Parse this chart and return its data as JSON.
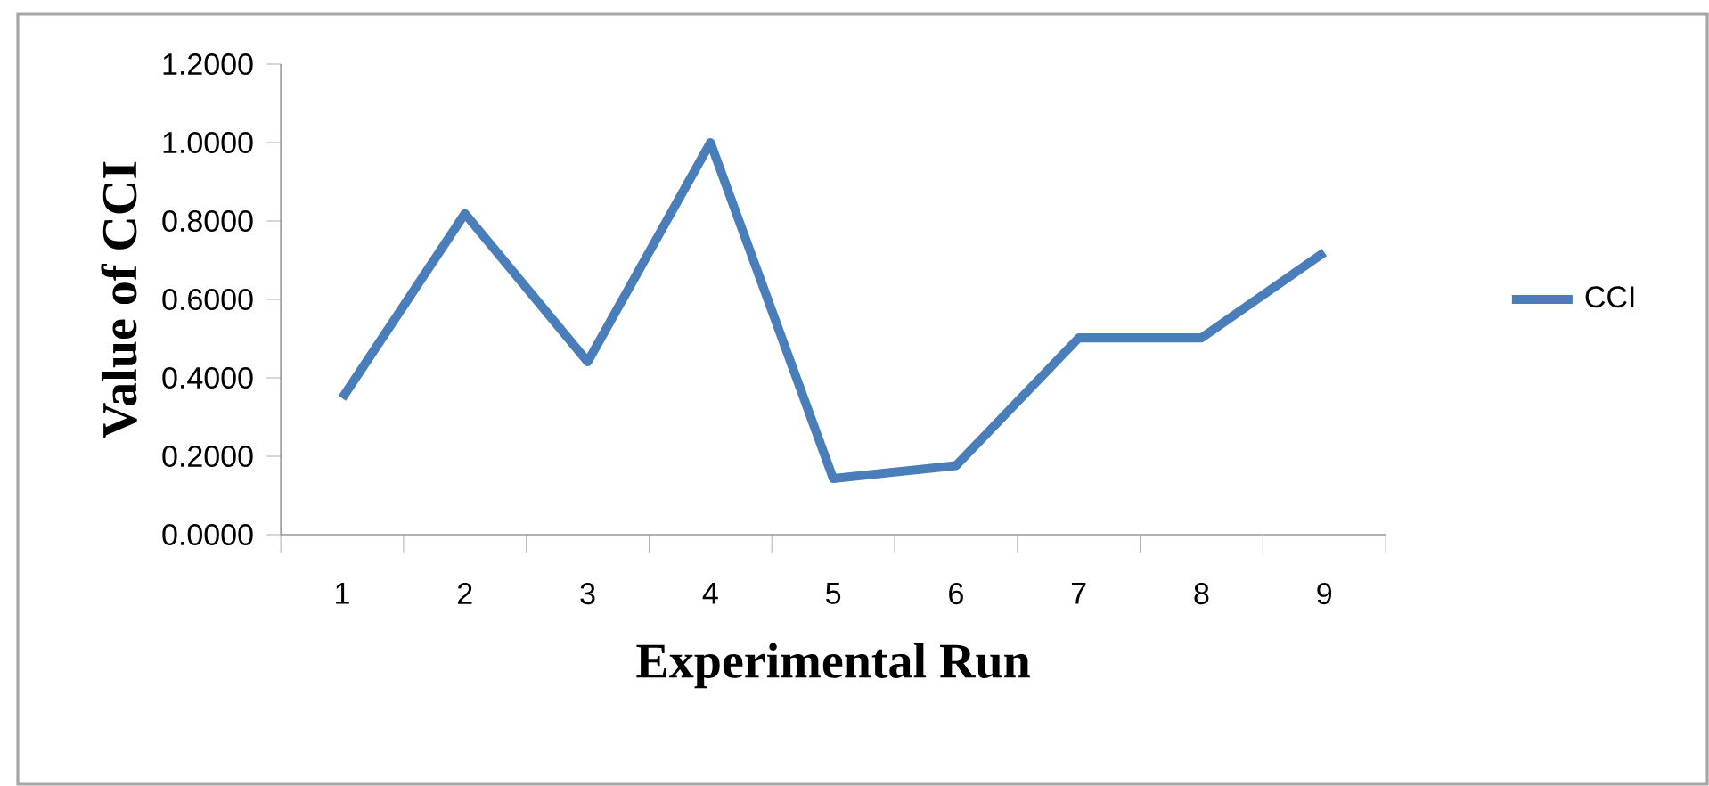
{
  "chart_data": {
    "type": "line",
    "xlabel": "Experimental Run",
    "ylabel": "Value of CCI",
    "categories": [
      "1",
      "2",
      "3",
      "4",
      "5",
      "6",
      "7",
      "8",
      "9"
    ],
    "series": [
      {
        "name": "CCI",
        "color": "#4a7ebb",
        "values": [
          0.348,
          0.819,
          0.441,
          1.0,
          0.143,
          0.176,
          0.502,
          0.502,
          0.72
        ]
      }
    ],
    "ylim": [
      0,
      1.2
    ],
    "yticks": [
      {
        "value": 0,
        "label": "0.0000"
      },
      {
        "value": 0.2,
        "label": "0.2000"
      },
      {
        "value": 0.4,
        "label": "0.4000"
      },
      {
        "value": 0.6,
        "label": "0.6000"
      },
      {
        "value": 0.8,
        "label": "0.8000"
      },
      {
        "value": 1.0,
        "label": "1.0000"
      },
      {
        "value": 1.2,
        "label": "1.2000"
      }
    ],
    "grid": false,
    "legend": "right",
    "marker": "none",
    "line_style": "solid"
  }
}
